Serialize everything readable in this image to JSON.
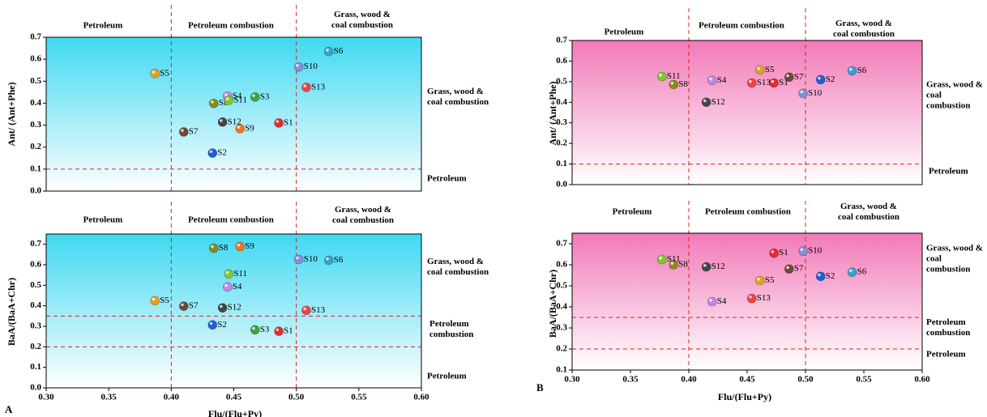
{
  "panel_labels": [
    "A",
    "B"
  ],
  "chart_data": [
    {
      "type": "scatter",
      "ylabel": "Ant/ (Ant+Phe)",
      "xlim": [
        0.3,
        0.6
      ],
      "ylim": [
        0,
        0.7
      ],
      "yticks": [
        {
          "value": 0,
          "label": "0.0"
        },
        0.1,
        0.2,
        0.3,
        0.4,
        0.5,
        0.6,
        0.7
      ],
      "labels": [
        "S1",
        "S2",
        "S3",
        "S4",
        "S5",
        "S6",
        "S7",
        "S8",
        "S9",
        "S10",
        "S11",
        "S12",
        "S13"
      ],
      "x": [
        0.486,
        0.433,
        0.467,
        0.445,
        0.387,
        0.526,
        0.41,
        0.434,
        0.455,
        0.502,
        0.446,
        0.441,
        0.508
      ],
      "values": [
        0.31,
        0.173,
        0.428,
        0.432,
        0.535,
        0.635,
        0.269,
        0.399,
        0.284,
        0.565,
        0.413,
        0.314,
        0.472
      ],
      "colors": [
        "#e52c2c",
        "#1d5fd4",
        "#3ca53c",
        "#c586e6",
        "#e2a420",
        "#35a2d2",
        "#6b4a3a",
        "#8c8a1e",
        "#f27420",
        "#8092d4",
        "#84c632",
        "#454545",
        "#f24242"
      ],
      "vlines": [
        0.4,
        0.5
      ],
      "hlines": [
        0.1
      ],
      "background": "#3fd9f2",
      "annotations": [
        "Petroleum",
        "Petroleum combustion",
        "Grass, wood &\ncoal combustion",
        "Grass, wood &\ncoal combustion",
        "Petroleum"
      ]
    },
    {
      "type": "scatter",
      "ylabel": "BaA/(BaA+Chr)",
      "xlabel": "Flu/(Flu+Py)",
      "xlim": [
        0.3,
        0.6
      ],
      "xticks": [
        {
          "value": 0.3,
          "label": "0.30"
        },
        0.35,
        {
          "value": 0.4,
          "label": "0.40"
        },
        0.45,
        {
          "value": 0.5,
          "label": "0.50"
        },
        0.55,
        {
          "value": 0.6,
          "label": "0.60"
        }
      ],
      "ylim": [
        0,
        0.75
      ],
      "yticks": [
        {
          "value": 0,
          "label": "0.0"
        },
        0.1,
        0.2,
        0.3,
        0.4,
        0.5,
        0.6,
        0.7
      ],
      "labels": [
        "S1",
        "S2",
        "S3",
        "S4",
        "S5",
        "S6",
        "S7",
        "S8",
        "S9",
        "S10",
        "S11",
        "S12",
        "S13"
      ],
      "x": [
        0.486,
        0.433,
        0.467,
        0.445,
        0.387,
        0.526,
        0.41,
        0.434,
        0.455,
        0.502,
        0.446,
        0.441,
        0.508
      ],
      "values": [
        0.276,
        0.307,
        0.283,
        0.492,
        0.425,
        0.622,
        0.398,
        0.681,
        0.689,
        0.626,
        0.555,
        0.39,
        0.378
      ],
      "colors": [
        "#e52c2c",
        "#1d5fd4",
        "#3ca53c",
        "#c586e6",
        "#e2a420",
        "#35a2d2",
        "#6b4a3a",
        "#8c8a1e",
        "#f27420",
        "#8092d4",
        "#84c632",
        "#454545",
        "#f24242"
      ],
      "vlines": [
        0.4,
        0.5
      ],
      "hlines": [
        0.2,
        0.35
      ],
      "background": "#3fd9f2",
      "annotations": [
        "Petroleum",
        "Petroleum combustion",
        "Grass, wood &\ncoal combustion",
        "Grass, wood &\ncoal combustion",
        "Petroleum\ncombustion",
        "Petroleum"
      ]
    },
    {
      "type": "scatter",
      "ylabel": "Ant/ (Ant+Phe)",
      "xlim": [
        0.3,
        0.6
      ],
      "ylim": [
        0,
        0.7
      ],
      "yticks": [
        {
          "value": 0,
          "label": "0.0"
        },
        0.1,
        0.2,
        0.3,
        0.4,
        0.5,
        0.6,
        0.7
      ],
      "labels": [
        "S1",
        "S2",
        "S4",
        "S5",
        "S6",
        "S7",
        "S8",
        "S10",
        "S11",
        "S12",
        "S13"
      ],
      "x": [
        0.473,
        0.513,
        0.42,
        0.461,
        0.54,
        0.486,
        0.387,
        0.498,
        0.377,
        0.415,
        0.454
      ],
      "values": [
        0.494,
        0.51,
        0.506,
        0.557,
        0.553,
        0.522,
        0.486,
        0.443,
        0.525,
        0.4,
        0.494
      ],
      "colors": [
        "#e52c2c",
        "#1d5fd4",
        "#c586e6",
        "#e2a420",
        "#35a2d2",
        "#6b4a3a",
        "#8c8a1e",
        "#8092d4",
        "#84c632",
        "#454545",
        "#f24242"
      ],
      "vlines": [
        0.4,
        0.5
      ],
      "hlines": [
        0.1
      ],
      "background": "#f27ab8",
      "annotations": [
        "Petroleum",
        "Petroleum combustion",
        "Grass, wood &\ncoal combustion",
        "Grass, wood &\ncoal combustion",
        "Petroleum"
      ]
    },
    {
      "type": "scatter",
      "ylabel": "BaA/(BaA+Chr)",
      "xlabel": "Flu/(Flu+Py)",
      "xlim": [
        0.3,
        0.6
      ],
      "xticks": [
        {
          "value": 0.3,
          "label": "0.30"
        },
        0.35,
        {
          "value": 0.4,
          "label": "0.40"
        },
        0.45,
        {
          "value": 0.5,
          "label": "0.50"
        },
        0.55,
        {
          "value": 0.6,
          "label": "0.60"
        }
      ],
      "ylim": [
        0.1,
        0.75
      ],
      "yticks": [
        0.1,
        0.2,
        0.3,
        0.4,
        0.5,
        0.6,
        0.7
      ],
      "labels": [
        "S1",
        "S2",
        "S4",
        "S5",
        "S6",
        "S7",
        "S8",
        "S10",
        "S11",
        "S12",
        "S13"
      ],
      "x": [
        0.473,
        0.513,
        0.42,
        0.461,
        0.54,
        0.486,
        0.387,
        0.498,
        0.377,
        0.415,
        0.454
      ],
      "values": [
        0.655,
        0.545,
        0.425,
        0.525,
        0.565,
        0.58,
        0.6,
        0.665,
        0.625,
        0.59,
        0.44
      ],
      "colors": [
        "#e52c2c",
        "#1d5fd4",
        "#c586e6",
        "#e2a420",
        "#35a2d2",
        "#6b4a3a",
        "#8c8a1e",
        "#8092d4",
        "#84c632",
        "#454545",
        "#f24242"
      ],
      "vlines": [
        0.4,
        0.5
      ],
      "hlines": [
        0.2,
        0.35
      ],
      "background": "#f27ab8",
      "annotations": [
        "Petroleum",
        "Petroleum combustion",
        "Grass, wood &\ncoal combustion",
        "Grass, wood &\ncoal combustion",
        "Petroleum\ncombustion",
        "Petroleum"
      ]
    }
  ]
}
